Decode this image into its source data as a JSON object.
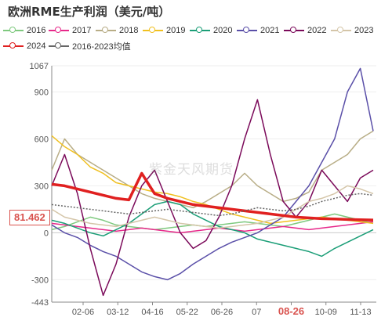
{
  "title": "欧洲RME生产利润（美元/吨）",
  "watermark": "紫金天风期货",
  "current_value_label": "81.462",
  "highlight_tick": "08-26",
  "chart_data": {
    "type": "line",
    "ylim": [
      -443,
      1067
    ],
    "y_ticks": [
      -443,
      -300,
      0,
      300,
      600,
      900,
      1067
    ],
    "x_tick_labels": [
      "02-06",
      "03-12",
      "04-16",
      "05-22",
      "06-26",
      "07",
      "08-26",
      "10-09",
      "11-13"
    ],
    "grid": "horizontal",
    "legend_position": "top",
    "series": [
      {
        "name": "2016",
        "color": "#7fc97f",
        "values": [
          20,
          40,
          70,
          100,
          80,
          50,
          40,
          30,
          20,
          30,
          40,
          50,
          40,
          50,
          60,
          70,
          60,
          50,
          40,
          60,
          80,
          100,
          120,
          100,
          80,
          60
        ]
      },
      {
        "name": "2017",
        "color": "#e7298a",
        "values": [
          60,
          50,
          40,
          30,
          20,
          10,
          20,
          30,
          20,
          10,
          0,
          10,
          20,
          30,
          20,
          10,
          20,
          30,
          40,
          30,
          20,
          30,
          40,
          50,
          60,
          70
        ]
      },
      {
        "name": "2018",
        "color": "#b8ad86",
        "values": [
          400,
          600,
          500,
          450,
          400,
          350,
          300,
          250,
          220,
          200,
          180,
          160,
          200,
          250,
          300,
          380,
          300,
          250,
          200,
          220,
          260,
          400,
          450,
          500,
          600,
          650
        ]
      },
      {
        "name": "2019",
        "color": "#f0c020",
        "values": [
          620,
          550,
          500,
          420,
          380,
          320,
          300,
          280,
          260,
          250,
          230,
          200,
          180,
          150,
          120,
          100,
          80,
          60,
          70,
          80,
          90,
          100,
          90,
          80,
          70,
          60
        ]
      },
      {
        "name": "2020",
        "color": "#1b9e77",
        "values": [
          80,
          60,
          30,
          0,
          -20,
          20,
          60,
          120,
          180,
          200,
          180,
          120,
          80,
          40,
          20,
          0,
          -40,
          -60,
          -80,
          -100,
          -120,
          -150,
          -100,
          -60,
          -20,
          20
        ]
      },
      {
        "name": "2021",
        "color": "#5a4fa8",
        "values": [
          50,
          0,
          -30,
          -80,
          -120,
          -150,
          -200,
          -250,
          -280,
          -300,
          -260,
          -200,
          -150,
          -100,
          -60,
          -30,
          0,
          50,
          100,
          200,
          300,
          450,
          600,
          900,
          1050,
          650
        ]
      },
      {
        "name": "2022",
        "color": "#7b0a5a",
        "values": [
          300,
          500,
          250,
          -100,
          -400,
          -200,
          100,
          300,
          400,
          200,
          0,
          -100,
          -50,
          100,
          300,
          600,
          850,
          500,
          200,
          100,
          200,
          400,
          300,
          200,
          350,
          400
        ]
      },
      {
        "name": "2023",
        "color": "#d4c5a8",
        "values": [
          150,
          100,
          80,
          60,
          50,
          40,
          60,
          80,
          100,
          80,
          60,
          50,
          40,
          30,
          40,
          50,
          60,
          80,
          100,
          150,
          200,
          220,
          250,
          300,
          280,
          250
        ]
      },
      {
        "name": "2024",
        "color": "#e02020",
        "values": [
          310,
          300,
          280,
          260,
          240,
          220,
          210,
          380,
          250,
          220,
          200,
          180,
          170,
          160,
          150,
          140,
          130,
          120,
          110,
          100,
          95,
          90,
          88,
          85,
          83,
          81.462
        ]
      },
      {
        "name": "2016-2023均值",
        "color": "#666666",
        "values": [
          180,
          170,
          160,
          150,
          140,
          130,
          120,
          130,
          140,
          150,
          140,
          130,
          120,
          110,
          120,
          140,
          160,
          150,
          140,
          150,
          170,
          200,
          220,
          240,
          250,
          240
        ]
      }
    ]
  }
}
